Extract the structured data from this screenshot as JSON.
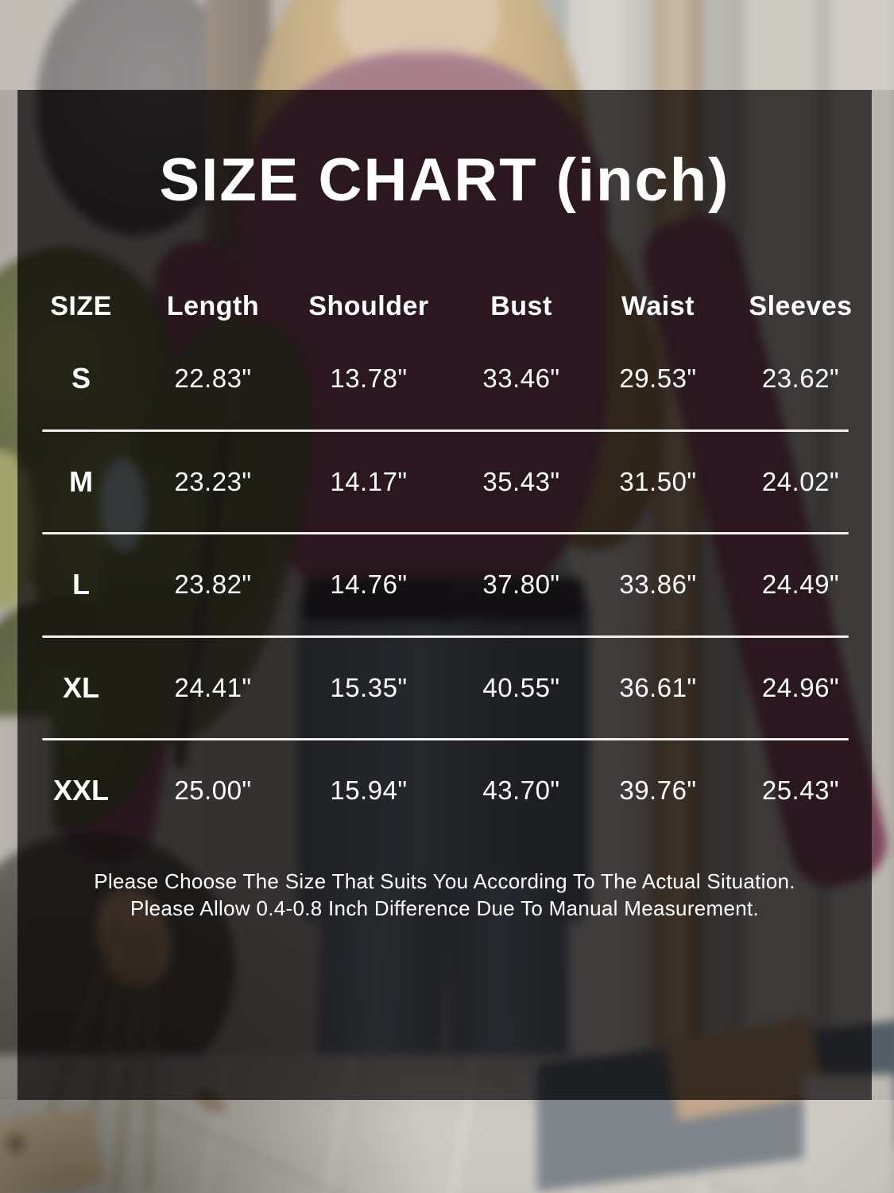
{
  "title": "SIZE CHART (inch)",
  "chart_data": {
    "type": "table",
    "title": "SIZE CHART (inch)",
    "unit": "inch",
    "columns": [
      "SIZE",
      "Length",
      "Shoulder",
      "Bust",
      "Waist",
      "Sleeves"
    ],
    "rows": [
      [
        "S",
        "22.83\"",
        "13.78\"",
        "33.46\"",
        "29.53\"",
        "23.62\""
      ],
      [
        "M",
        "23.23\"",
        "14.17\"",
        "35.43\"",
        "31.50\"",
        "24.02\""
      ],
      [
        "L",
        "23.82\"",
        "14.76\"",
        "37.80\"",
        "33.86\"",
        "24.49\""
      ],
      [
        "XL",
        "24.41\"",
        "15.35\"",
        "40.55\"",
        "36.61\"",
        "24.96\""
      ],
      [
        "XXL",
        "25.00\"",
        "15.94\"",
        "43.70\"",
        "39.76\"",
        "25.43\""
      ]
    ]
  },
  "footer": {
    "line1": "Please Choose The Size That Suits You According To The Actual Situation.",
    "line2": "Please Allow 0.4-0.8 Inch Difference Due To Manual Measurement."
  },
  "colors": {
    "overlay_panel": "#100e0f",
    "table_text": "#ffffff",
    "divider": "#f0efee",
    "sweater_maroon": "#7e3854",
    "denim_blue": "#55646f",
    "foliage_green": "#5a612c",
    "gold_chain": "#8f6f36",
    "wall_gray": "#8f8a83",
    "floor_gray": "#b5b2ab",
    "hair_blonde": "#b68e55"
  }
}
